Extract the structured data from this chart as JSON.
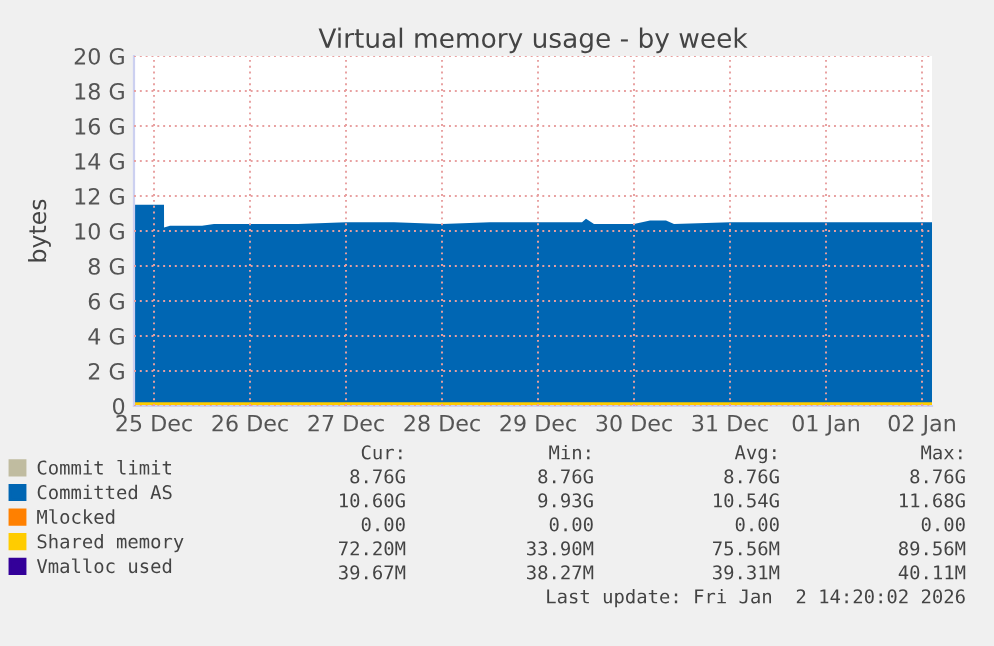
{
  "chart_data": {
    "type": "area",
    "title": "Virtual memory usage - by week",
    "ylabel": "bytes",
    "x": [
      "2025-12-24T19:00",
      "2025-12-25T02:30",
      "2025-12-25T02:31",
      "2025-12-25T04:00",
      "2025-12-25T12:00",
      "2025-12-25T15:00",
      "2025-12-26T00:00",
      "2025-12-26T12:00",
      "2025-12-27T00:00",
      "2025-12-27T12:00",
      "2025-12-28T00:00",
      "2025-12-28T12:00",
      "2025-12-29T00:00",
      "2025-12-29T11:00",
      "2025-12-29T12:00",
      "2025-12-29T14:00",
      "2025-12-30T00:00",
      "2025-12-30T04:00",
      "2025-12-30T08:00",
      "2025-12-30T10:00",
      "2025-12-31T00:00",
      "2025-12-31T12:00",
      "2026-01-01T00:00",
      "2026-01-01T12:00",
      "2026-01-02T00:00",
      "2026-01-02T02:30"
    ],
    "series": [
      {
        "name": "Commit limit",
        "color": "#c0bca0",
        "type": "line",
        "values": [
          null,
          null,
          null,
          null,
          null,
          null,
          null,
          null,
          null,
          null,
          null,
          null,
          null,
          null,
          null,
          null,
          null,
          null,
          null,
          null,
          null,
          null,
          null,
          null,
          null,
          null
        ]
      },
      {
        "name": "Committed AS",
        "color": "#0066b3",
        "values": [
          11.5,
          11.5,
          10.2,
          10.3,
          10.3,
          10.4,
          10.4,
          10.4,
          10.5,
          10.5,
          10.4,
          10.5,
          10.5,
          10.5,
          10.7,
          10.4,
          10.4,
          10.6,
          10.6,
          10.4,
          10.5,
          10.5,
          10.5,
          10.5,
          10.5,
          10.5
        ]
      },
      {
        "name": "Mlocked",
        "color": "#ff8000",
        "type": "line",
        "values": [
          null,
          null,
          null,
          null,
          null,
          null,
          null,
          null,
          null,
          null,
          null,
          null,
          null,
          null,
          null,
          null,
          null,
          null,
          null,
          null,
          null,
          null,
          null,
          null,
          null,
          null
        ]
      },
      {
        "name": "Shared memory",
        "color": "#ffcc00",
        "type": "line",
        "values": [
          0.1,
          0.1,
          0.1,
          0.1,
          0.1,
          0.1,
          0.1,
          0.1,
          0.1,
          0.1,
          0.1,
          0.1,
          0.1,
          0.1,
          0.1,
          0.1,
          0.1,
          0.1,
          0.1,
          0.1,
          0.1,
          0.1,
          0.1,
          0.1,
          0.1,
          0.1
        ]
      },
      {
        "name": "Vmalloc used",
        "color": "#330099",
        "type": "line",
        "values": [
          null,
          null,
          null,
          null,
          null,
          null,
          null,
          null,
          null,
          null,
          null,
          null,
          null,
          null,
          null,
          null,
          null,
          null,
          null,
          null,
          null,
          null,
          null,
          null,
          null,
          null
        ]
      }
    ],
    "xlim": [
      "2025-12-24T19:00",
      "2026-01-02T02:30"
    ],
    "xticks": [
      {
        "value": "2025-12-25",
        "label": "25 Dec"
      },
      {
        "value": "2025-12-26",
        "label": "26 Dec"
      },
      {
        "value": "2025-12-27",
        "label": "27 Dec"
      },
      {
        "value": "2025-12-28",
        "label": "28 Dec"
      },
      {
        "value": "2025-12-29",
        "label": "29 Dec"
      },
      {
        "value": "2025-12-30",
        "label": "30 Dec"
      },
      {
        "value": "2025-12-31",
        "label": "31 Dec"
      },
      {
        "value": "2026-01-01",
        "label": "01 Jan"
      },
      {
        "value": "2026-01-02",
        "label": "02 Jan"
      }
    ],
    "ylim": [
      0,
      20
    ],
    "yticks": [
      0,
      {
        "value": 2,
        "label": "2 G"
      },
      {
        "value": 4,
        "label": "4 G"
      },
      {
        "value": 6,
        "label": "6 G"
      },
      {
        "value": 8,
        "label": "8 G"
      },
      {
        "value": 10,
        "label": "10 G"
      },
      {
        "value": 12,
        "label": "12 G"
      },
      {
        "value": 14,
        "label": "14 G"
      },
      {
        "value": 16,
        "label": "16 G"
      },
      {
        "value": 18,
        "label": "18 G"
      },
      {
        "value": 20,
        "label": "20 G"
      }
    ],
    "grid": true,
    "legend": "bottom",
    "annotations": [
      "Cur:",
      "Min:",
      "Avg:",
      "Max:",
      "8.76G",
      "8.76G",
      "8.76G",
      "8.76G",
      "10.60G",
      "9.93G",
      "10.54G",
      "11.68G",
      "0.00",
      "0.00",
      "0.00",
      "0.00",
      "72.20M",
      "33.90M",
      "75.56M",
      "89.56M",
      "39.67M",
      "38.27M",
      "39.31M",
      "40.11M",
      "Last update: Fri Jan  2 14:20:02 2026"
    ]
  }
}
